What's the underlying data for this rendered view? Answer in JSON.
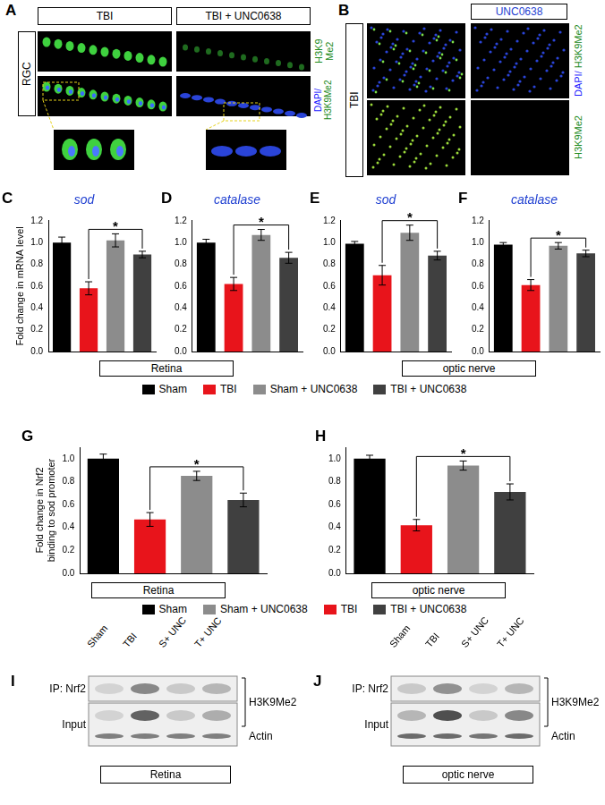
{
  "chart_data": [
    {
      "panel": "C",
      "type": "bar",
      "title": "sod",
      "y_label": "Fold change in mRNA level",
      "categories": [
        "Sham",
        "TBI",
        "Sham + UNC0638",
        "TBI + UNC0638"
      ],
      "values": [
        1.0,
        0.58,
        1.02,
        0.89
      ],
      "errors": [
        0.05,
        0.06,
        0.06,
        0.03
      ],
      "colors": [
        "#000000",
        "#e8141b",
        "#8c8c8c",
        "#404040"
      ],
      "ylim": [
        0,
        1.2
      ],
      "yticks": [
        {
          "value": 0,
          "label": "0.0"
        },
        0.2,
        0.4,
        0.6,
        0.8,
        {
          "value": 1,
          "label": "1.0"
        },
        1.2
      ],
      "grid": false,
      "tick_labels": "y",
      "annotations": [
        {
          "text": "*",
          "between": [
            "TBI",
            "TBI + UNC0638"
          ]
        }
      ]
    },
    {
      "panel": "D",
      "type": "bar",
      "title": "catalase",
      "categories": [
        "Sham",
        "TBI",
        "Sham + UNC0638",
        "TBI + UNC0638"
      ],
      "values": [
        1.0,
        0.62,
        1.07,
        0.86
      ],
      "errors": [
        0.03,
        0.06,
        0.05,
        0.05
      ],
      "colors": [
        "#000000",
        "#e8141b",
        "#8c8c8c",
        "#404040"
      ],
      "ylim": [
        0,
        1.2
      ],
      "yticks": [
        {
          "value": 0,
          "label": "0.0"
        },
        0.2,
        0.4,
        0.6,
        0.8,
        {
          "value": 1,
          "label": "1.0"
        },
        1.2
      ],
      "grid": false,
      "tick_labels": "y",
      "annotations": [
        {
          "text": "*",
          "between": [
            "TBI",
            "TBI + UNC0638"
          ]
        }
      ]
    },
    {
      "panel": "E",
      "type": "bar",
      "title": "sod",
      "categories": [
        "Sham",
        "TBI",
        "Sham + UNC0638",
        "TBI + UNC0638"
      ],
      "values": [
        0.99,
        0.7,
        1.09,
        0.88
      ],
      "errors": [
        0.02,
        0.09,
        0.07,
        0.04
      ],
      "colors": [
        "#000000",
        "#e8141b",
        "#8c8c8c",
        "#404040"
      ],
      "ylim": [
        0,
        1.2
      ],
      "yticks": [
        {
          "value": 0,
          "label": "0.0"
        },
        0.2,
        0.4,
        0.6,
        0.8,
        {
          "value": 1,
          "label": "1.0"
        },
        1.2
      ],
      "grid": false,
      "tick_labels": "y",
      "annotations": [
        {
          "text": "*",
          "between": [
            "TBI",
            "TBI + UNC0638"
          ]
        }
      ]
    },
    {
      "panel": "F",
      "type": "bar",
      "title": "catalase",
      "categories": [
        "Sham",
        "TBI",
        "Sham + UNC0638",
        "TBI + UNC0638"
      ],
      "values": [
        0.98,
        0.61,
        0.97,
        0.9
      ],
      "errors": [
        0.02,
        0.05,
        0.03,
        0.03
      ],
      "colors": [
        "#000000",
        "#e8141b",
        "#8c8c8c",
        "#404040"
      ],
      "ylim": [
        0,
        1.2
      ],
      "yticks": [
        {
          "value": 0,
          "label": "0.0"
        },
        0.2,
        0.4,
        0.6,
        0.8,
        {
          "value": 1,
          "label": "1.0"
        },
        1.2
      ],
      "grid": false,
      "tick_labels": "y",
      "annotations": [
        {
          "text": "*",
          "between": [
            "TBI",
            "TBI + UNC0638"
          ]
        }
      ]
    },
    {
      "panel": "G",
      "type": "bar",
      "y_label": [
        "Fold change in Nrf2",
        "binding to sod promoter"
      ],
      "categories": [
        "Sham",
        "TBI",
        "Sham + UNC0638",
        "TBI + UNC0638"
      ],
      "values": [
        1.0,
        0.47,
        0.85,
        0.64
      ],
      "errors": [
        0.04,
        0.06,
        0.04,
        0.06
      ],
      "colors": [
        "#000000",
        "#e8141b",
        "#8c8c8c",
        "#404040"
      ],
      "ylim": [
        0,
        1.1
      ],
      "yticks": [
        {
          "value": 0,
          "label": "0.0"
        },
        0.2,
        0.4,
        0.6,
        0.8,
        {
          "value": 1,
          "label": "1.0"
        }
      ],
      "grid": false,
      "tick_labels": "y",
      "annotations": [
        {
          "text": "*",
          "between": [
            "TBI",
            "TBI + UNC0638"
          ]
        }
      ]
    },
    {
      "panel": "H",
      "type": "bar",
      "categories": [
        "Sham",
        "TBI",
        "Sham + UNC0638",
        "TBI + UNC0638"
      ],
      "values": [
        1.0,
        0.42,
        0.94,
        0.71
      ],
      "errors": [
        0.03,
        0.05,
        0.04,
        0.07
      ],
      "colors": [
        "#000000",
        "#e8141b",
        "#8c8c8c",
        "#404040"
      ],
      "ylim": [
        0,
        1.1
      ],
      "yticks": [
        {
          "value": 0,
          "label": "0.0"
        },
        0.2,
        0.4,
        0.6,
        0.8,
        {
          "value": 1,
          "label": "1.0"
        }
      ],
      "grid": false,
      "tick_labels": "y",
      "annotations": [
        {
          "text": "*",
          "between": [
            "TBI",
            "TBI + UNC0638"
          ]
        }
      ]
    }
  ],
  "figure": {
    "panel_a": {
      "letter": "A",
      "row_label": "RGC",
      "columns": [
        "TBI",
        "TBI + UNC0638"
      ],
      "channel_labels": [
        [
          {
            "text": "H3K9 Me2",
            "color": "#1a8a1a"
          }
        ],
        [
          {
            "text": "DAPI/",
            "color": "#1a1aff"
          },
          {
            "text": "H3K9Me2",
            "color": "#1a8a1a"
          }
        ]
      ]
    },
    "panel_b": {
      "letter": "B",
      "row_label": "TBI",
      "column_label": "UNC0638",
      "channel_labels": [
        [
          {
            "text": "DAPI/",
            "color": "#1a1aff"
          },
          {
            "text": "H3K9Me2",
            "color": "#1a8a1a"
          }
        ],
        [
          {
            "text": "H3K9Me2",
            "color": "#1a8a1a"
          }
        ]
      ]
    },
    "legend_1": [
      {
        "name": "Sham",
        "color": "#000000"
      },
      {
        "name": "TBI",
        "color": "#e8141b"
      },
      {
        "name": "Sham + UNC0638",
        "color": "#8c8c8c"
      },
      {
        "name": "TBI + UNC0638",
        "color": "#404040"
      }
    ],
    "legend_2": [
      {
        "name": "Sham",
        "color": "#000000"
      },
      {
        "name": "Sham + UNC0638",
        "color": "#8c8c8c"
      },
      {
        "name": "TBI",
        "color": "#e8141b"
      },
      {
        "name": "TBI + UNC0638",
        "color": "#404040"
      }
    ],
    "group_captions": [
      {
        "text": "Retina",
        "panels": [
          "C",
          "D"
        ]
      },
      {
        "text": "optic nerve",
        "panels": [
          "E",
          "F"
        ]
      },
      {
        "text": "Retina",
        "panels": [
          "G"
        ]
      },
      {
        "text": "optic nerve",
        "panels": [
          "H"
        ]
      }
    ],
    "blots": [
      {
        "letter": "I",
        "caption": "Retina",
        "lanes": [
          "Sham",
          "TBI",
          "S+ UNC",
          "T+ UNC"
        ],
        "bands": [
          [
            0.15,
            0.55,
            0.2,
            0.3
          ],
          [
            0.15,
            0.75,
            0.2,
            0.35
          ],
          [
            0.6,
            0.6,
            0.6,
            0.6
          ]
        ],
        "left_labels": [
          {
            "text": "IP: Nrf2",
            "rows": [
              0
            ]
          },
          {
            "text": "Input",
            "rows": [
              1,
              2
            ]
          }
        ],
        "right_labels": [
          {
            "text": "H3K9Me2",
            "rows": [
              0,
              1
            ]
          },
          {
            "text": "Actin",
            "rows": [
              2
            ]
          }
        ]
      },
      {
        "letter": "J",
        "caption": "optic nerve",
        "lanes": [
          "Sham",
          "TBI",
          "S+ UNC",
          "T+ UNC"
        ],
        "bands": [
          [
            0.2,
            0.5,
            0.15,
            0.3
          ],
          [
            0.3,
            0.85,
            0.2,
            0.55
          ],
          [
            0.7,
            0.7,
            0.65,
            0.7
          ]
        ],
        "left_labels": [
          {
            "text": "IP: Nrf2",
            "rows": [
              0
            ]
          },
          {
            "text": "Input",
            "rows": [
              1,
              2
            ]
          }
        ],
        "right_labels": [
          {
            "text": "H3K9Me2",
            "rows": [
              0,
              1
            ]
          },
          {
            "text": "Actin",
            "rows": [
              2
            ]
          }
        ]
      }
    ]
  }
}
